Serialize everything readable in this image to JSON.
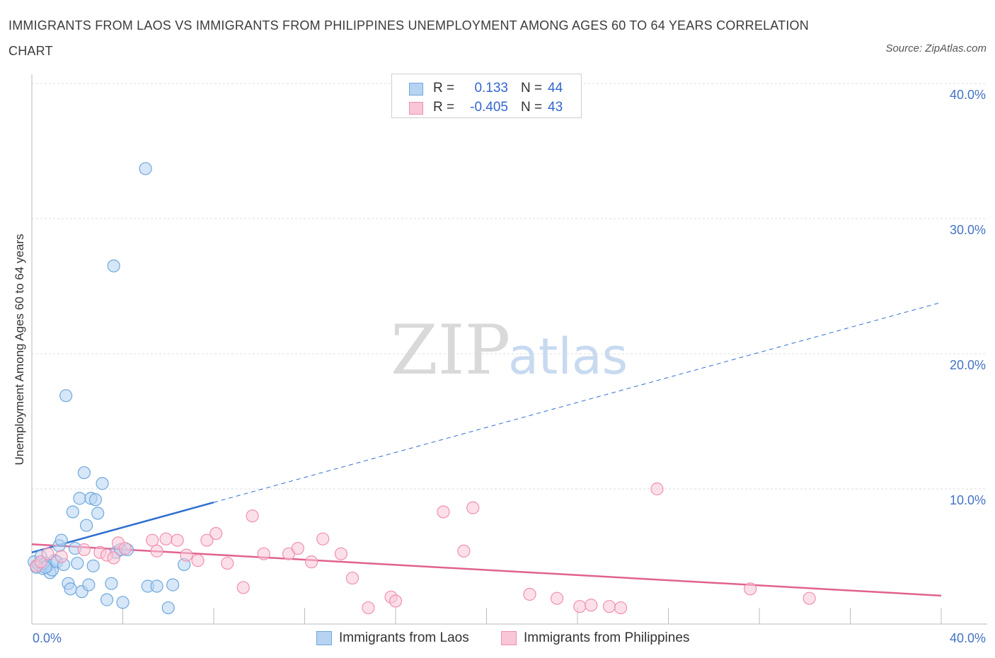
{
  "title": "IMMIGRANTS FROM LAOS VS IMMIGRANTS FROM PHILIPPINES UNEMPLOYMENT AMONG AGES 60 TO 64 YEARS CORRELATION CHART",
  "source": "Source: ZipAtlas.com",
  "watermark": {
    "zip": "ZIP",
    "atlas": "atlas"
  },
  "colors": {
    "laos": "#6fa8dc",
    "laos_fill": "#b7d3f2",
    "laos_line": "#2e6fcf",
    "philippines": "#f08fb0",
    "philippines_fill": "#f9c6d7",
    "philippines_line": "#e0628e",
    "grid": "#dddddd",
    "axis_text": "#4472c4"
  },
  "legend": {
    "rows": [
      {
        "r_label": "R =",
        "r_value": "0.133",
        "n_label": "N =",
        "n_value": "44"
      },
      {
        "r_label": "R =",
        "r_value": "-0.405",
        "n_label": "N =",
        "n_value": "43"
      }
    ]
  },
  "chart_data": {
    "type": "scatter",
    "title": "IMMIGRANTS FROM LAOS VS IMMIGRANTS FROM PHILIPPINES UNEMPLOYMENT AMONG AGES 60 TO 64 YEARS CORRELATION CHART",
    "xlabel": "",
    "ylabel": "Unemployment Among Ages 60 to 64 years",
    "xlim": [
      0,
      40
    ],
    "ylim": [
      0,
      40
    ],
    "x_tick_labels": [
      "0.0%",
      "40.0%"
    ],
    "y_ticks": [
      10,
      20,
      30,
      40
    ],
    "y_tick_labels": [
      "10.0%",
      "20.0%",
      "30.0%",
      "40.0%"
    ],
    "legend_position": "bottom-center",
    "series": [
      {
        "name": "Immigrants from Laos",
        "points": [
          [
            0.1,
            4.6
          ],
          [
            0.2,
            4.2
          ],
          [
            0.3,
            4.4
          ],
          [
            0.4,
            5.0
          ],
          [
            0.5,
            4.1
          ],
          [
            0.6,
            4.5
          ],
          [
            0.7,
            4.3
          ],
          [
            0.8,
            3.8
          ],
          [
            0.9,
            4.0
          ],
          [
            1.0,
            4.7
          ],
          [
            1.1,
            4.6
          ],
          [
            1.2,
            5.8
          ],
          [
            1.3,
            6.2
          ],
          [
            1.4,
            4.4
          ],
          [
            1.5,
            16.9
          ],
          [
            1.6,
            3.0
          ],
          [
            1.7,
            2.6
          ],
          [
            1.8,
            8.3
          ],
          [
            1.9,
            5.6
          ],
          [
            2.0,
            4.5
          ],
          [
            2.1,
            9.3
          ],
          [
            2.2,
            2.4
          ],
          [
            2.3,
            11.2
          ],
          [
            2.4,
            7.3
          ],
          [
            2.5,
            2.9
          ],
          [
            2.6,
            9.3
          ],
          [
            2.7,
            4.3
          ],
          [
            2.8,
            9.2
          ],
          [
            2.9,
            8.2
          ],
          [
            3.1,
            10.4
          ],
          [
            3.3,
            1.8
          ],
          [
            3.5,
            3.0
          ],
          [
            3.6,
            26.5
          ],
          [
            3.7,
            5.3
          ],
          [
            3.9,
            5.5
          ],
          [
            4.0,
            1.6
          ],
          [
            4.2,
            5.5
          ],
          [
            5.0,
            33.7
          ],
          [
            5.1,
            2.8
          ],
          [
            5.5,
            2.8
          ],
          [
            6.0,
            1.2
          ],
          [
            6.2,
            2.9
          ],
          [
            6.7,
            4.4
          ],
          [
            0.6,
            4.2
          ]
        ]
      },
      {
        "name": "Immigrants from Philippines",
        "points": [
          [
            0.2,
            4.3
          ],
          [
            0.4,
            4.6
          ],
          [
            0.7,
            5.2
          ],
          [
            1.3,
            5.0
          ],
          [
            2.3,
            5.5
          ],
          [
            3.0,
            5.3
          ],
          [
            3.3,
            5.1
          ],
          [
            3.6,
            4.9
          ],
          [
            3.8,
            6.0
          ],
          [
            4.1,
            5.6
          ],
          [
            5.3,
            6.2
          ],
          [
            5.5,
            5.4
          ],
          [
            5.9,
            6.3
          ],
          [
            6.4,
            6.2
          ],
          [
            6.8,
            5.1
          ],
          [
            7.3,
            4.7
          ],
          [
            7.7,
            6.2
          ],
          [
            8.1,
            6.7
          ],
          [
            8.6,
            4.5
          ],
          [
            9.3,
            2.7
          ],
          [
            9.7,
            8.0
          ],
          [
            10.2,
            5.2
          ],
          [
            11.3,
            5.2
          ],
          [
            11.7,
            5.6
          ],
          [
            12.3,
            4.6
          ],
          [
            12.8,
            6.3
          ],
          [
            13.6,
            5.2
          ],
          [
            14.1,
            3.4
          ],
          [
            14.8,
            1.2
          ],
          [
            15.8,
            2.0
          ],
          [
            16.0,
            1.7
          ],
          [
            18.1,
            8.3
          ],
          [
            19.0,
            5.4
          ],
          [
            19.4,
            8.6
          ],
          [
            21.9,
            2.2
          ],
          [
            23.1,
            1.9
          ],
          [
            24.1,
            1.3
          ],
          [
            24.6,
            1.4
          ],
          [
            25.4,
            1.3
          ],
          [
            25.9,
            1.2
          ],
          [
            27.5,
            10.0
          ],
          [
            31.6,
            2.6
          ],
          [
            34.2,
            1.9
          ]
        ]
      }
    ],
    "trend_lines": [
      {
        "series": "Immigrants from Laos",
        "x": [
          0,
          8
        ],
        "y": [
          5.3,
          9.0
        ],
        "style": "solid"
      },
      {
        "series": "Immigrants from Laos",
        "x": [
          8,
          40
        ],
        "y": [
          9.0,
          23.8
        ],
        "style": "dashed"
      },
      {
        "series": "Immigrants from Philippines",
        "x": [
          0,
          40
        ],
        "y": [
          5.9,
          2.1
        ],
        "style": "solid"
      }
    ]
  }
}
